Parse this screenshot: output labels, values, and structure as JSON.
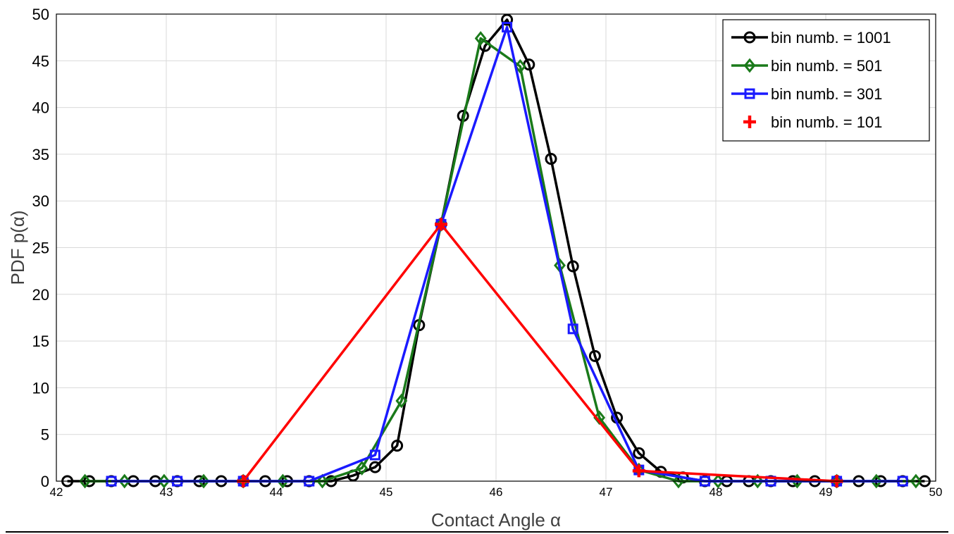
{
  "chart_data": {
    "type": "line",
    "title": "",
    "xlabel": "Contact Angle  α",
    "ylabel": "PDF  p(α)",
    "xlim": [
      42,
      50
    ],
    "ylim": [
      0,
      50
    ],
    "xticks": [
      "42",
      "43",
      "44",
      "45",
      "46",
      "47",
      "48",
      "49",
      "50"
    ],
    "yticks": [
      "0",
      "5",
      "10",
      "15",
      "20",
      "25",
      "30",
      "35",
      "40",
      "45",
      "50"
    ],
    "grid": true,
    "legend_position": "top-right",
    "series": [
      {
        "name": "bin numb. = 1001",
        "color": "#000000",
        "marker": "circle",
        "x": [
          42.1,
          42.3,
          42.5,
          42.7,
          42.9,
          43.1,
          43.3,
          43.5,
          43.7,
          43.9,
          44.1,
          44.3,
          44.5,
          44.7,
          44.9,
          45.1,
          45.3,
          45.5,
          45.7,
          45.9,
          46.1,
          46.3,
          46.5,
          46.7,
          46.9,
          47.1,
          47.3,
          47.5,
          47.7,
          47.9,
          48.1,
          48.3,
          48.5,
          48.7,
          48.9,
          49.1,
          49.3,
          49.5,
          49.7,
          49.9
        ],
        "y": [
          0,
          0,
          0,
          0,
          0,
          0,
          0,
          0,
          0,
          0,
          0,
          0,
          0,
          0.6,
          1.5,
          3.8,
          16.7,
          27.5,
          39.1,
          46.6,
          49.4,
          44.6,
          34.5,
          23,
          13.4,
          6.8,
          3,
          1,
          0.4,
          0,
          0,
          0,
          0,
          0,
          0,
          0,
          0,
          0,
          0,
          0
        ]
      },
      {
        "name": "bin numb. = 501",
        "color": "#1a7a1a",
        "marker": "diamond",
        "x": [
          42.26,
          42.62,
          42.98,
          43.34,
          43.7,
          44.06,
          44.42,
          44.78,
          45.14,
          45.5,
          45.86,
          46.22,
          46.58,
          46.94,
          47.3,
          47.66,
          48.02,
          48.38,
          48.74,
          49.1,
          49.46,
          49.82
        ],
        "y": [
          0,
          0,
          0,
          0,
          0,
          0,
          0,
          1.4,
          8.6,
          27.5,
          47.4,
          44.4,
          23.1,
          6.8,
          1.2,
          0,
          0,
          0,
          0,
          0,
          0,
          0
        ]
      },
      {
        "name": "bin numb. = 301",
        "color": "#1a1aff",
        "marker": "square",
        "x": [
          42.5,
          43.1,
          43.7,
          44.3,
          44.9,
          45.5,
          46.1,
          46.7,
          47.3,
          47.9,
          48.5,
          49.1,
          49.7
        ],
        "y": [
          0,
          0,
          0,
          0,
          2.8,
          27.5,
          48.6,
          16.3,
          1.2,
          0,
          0,
          0,
          0
        ]
      },
      {
        "name": "bin numb. = 101",
        "color": "#ff0000",
        "marker": "plus",
        "x": [
          43.7,
          45.5,
          47.3,
          49.1
        ],
        "y": [
          0,
          27.5,
          1.1,
          0
        ]
      }
    ]
  }
}
